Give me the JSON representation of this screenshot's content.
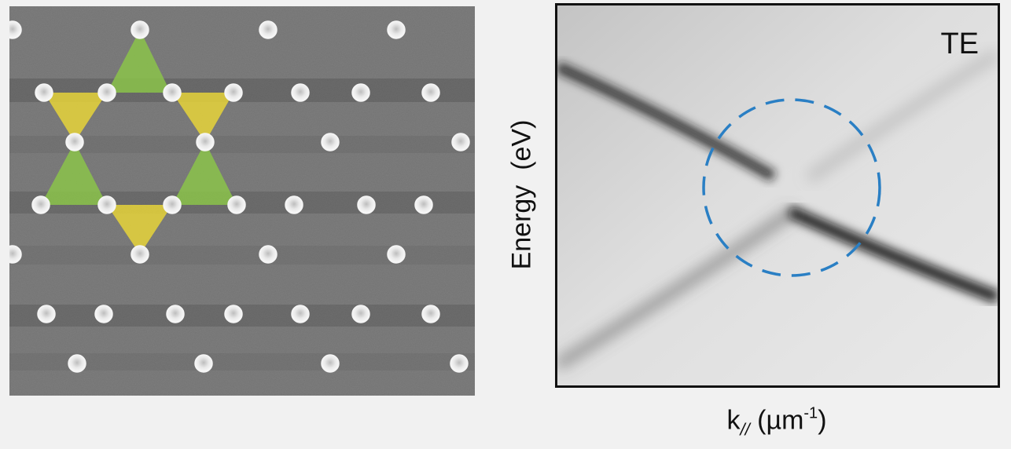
{
  "figure": {
    "left_panel": {
      "colors": {
        "triangle_up": "#8bc34a",
        "triangle_down": "#e6d33a",
        "background": "#7c7c7c",
        "particle": "#f2f2f2"
      }
    },
    "right_panel": {
      "polarization_label": "TE",
      "y_axis_label": "Energy  (eV)",
      "x_axis": {
        "symbol": "k",
        "subscript": "//",
        "unit_base": " (µm",
        "unit_exponent": "-1",
        "unit_close": ")"
      },
      "colors": {
        "highlight_circle": "#2a7fc4",
        "band": "#111111",
        "frame": "#111111"
      }
    }
  }
}
